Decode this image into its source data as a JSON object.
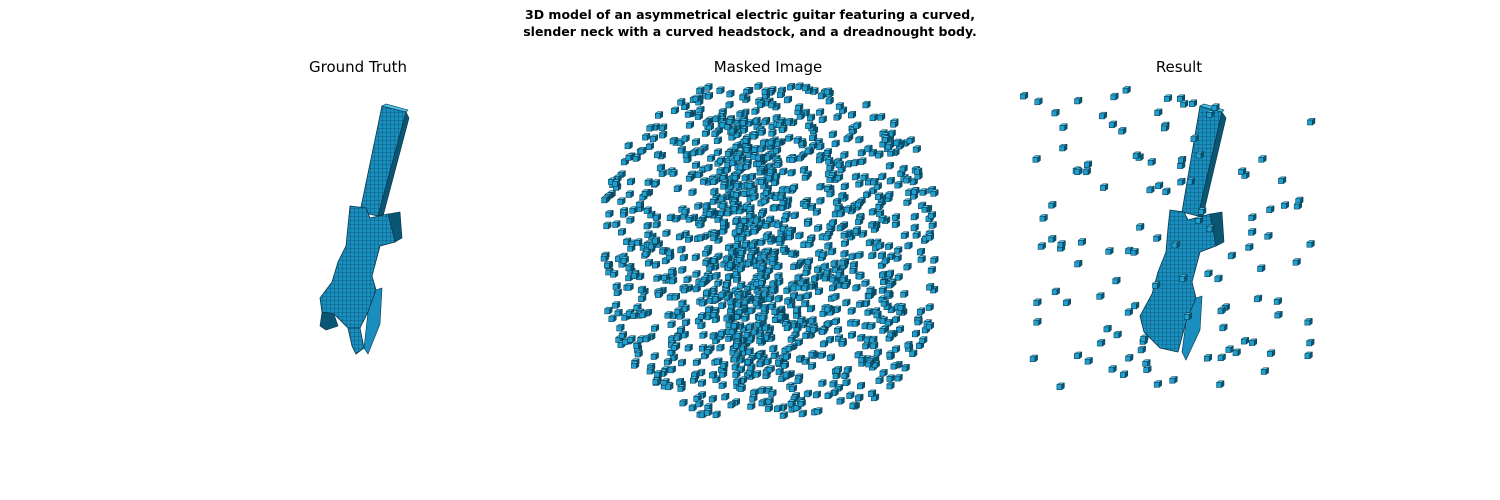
{
  "figure": {
    "title_line1": "3D model of an asymmetrical electric guitar featuring a curved,",
    "title_line2": "slender neck with a curved headstock, and a dreadnought body."
  },
  "panels": {
    "ground_truth": {
      "title": "Ground Truth"
    },
    "masked": {
      "title": "Masked Image"
    },
    "result": {
      "title": "Result"
    }
  },
  "colors": {
    "voxel_face": "#1e9fd0",
    "voxel_top": "#4cc3ea",
    "voxel_dark": "#0b5673",
    "voxel_edge": "#063548"
  }
}
